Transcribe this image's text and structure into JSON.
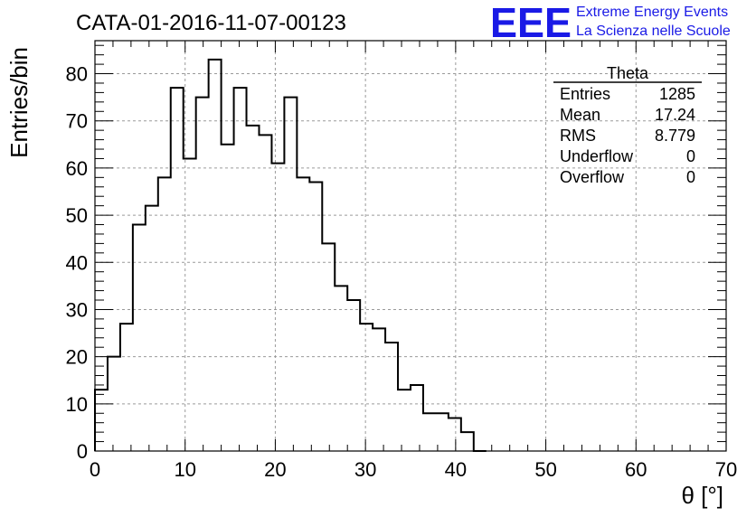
{
  "header": {
    "run_label": "CATA-01-2016-11-07-00123",
    "logo_acronym": "EEE",
    "logo_line1": "Extreme Energy Events",
    "logo_line2": "La Scienza nelle Scuole",
    "logo_color": "#1a1ae6"
  },
  "stats_box": {
    "name": "Theta",
    "rows": [
      {
        "label": "Entries",
        "value": "1285"
      },
      {
        "label": "Mean",
        "value": "17.24"
      },
      {
        "label": "RMS",
        "value": "8.779"
      },
      {
        "label": "Underflow",
        "value": "0"
      },
      {
        "label": "Overflow",
        "value": "0"
      }
    ]
  },
  "chart_data": {
    "type": "bar",
    "style": "step-histogram",
    "title": "CATA-01-2016-11-07-00123",
    "xlabel": "θ [°]",
    "ylabel": "Entries/bin",
    "xlim": [
      0,
      70
    ],
    "ylim": [
      0,
      87
    ],
    "bin_width": 1.4,
    "x_ticks": [
      0,
      10,
      20,
      30,
      40,
      50,
      60,
      70
    ],
    "y_ticks": [
      0,
      10,
      20,
      30,
      40,
      50,
      60,
      70,
      80
    ],
    "grid": true,
    "legend": "none",
    "values": [
      13,
      20,
      27,
      48,
      52,
      58,
      77,
      62,
      75,
      83,
      65,
      77,
      69,
      67,
      61,
      75,
      58,
      57,
      44,
      35,
      32,
      27,
      26,
      23,
      13,
      14,
      8,
      8,
      7,
      4,
      0
    ]
  }
}
